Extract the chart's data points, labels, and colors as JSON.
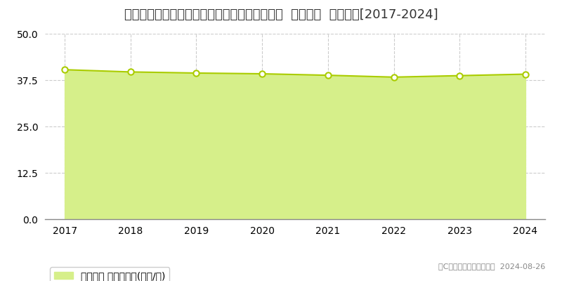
{
  "title": "神奈川県足柄上郡開成町みなみ３丁目３番１０  地価公示  地価推移[2017-2024]",
  "years": [
    2017,
    2018,
    2019,
    2020,
    2021,
    2022,
    2023,
    2024
  ],
  "values": [
    40.3,
    39.7,
    39.4,
    39.2,
    38.8,
    38.3,
    38.7,
    39.1
  ],
  "line_color": "#aacc00",
  "fill_color": "#d6ef8a",
  "marker_color": "#ffffff",
  "marker_edge_color": "#aacc00",
  "background_color": "#ffffff",
  "grid_color": "#cccccc",
  "ylim": [
    0,
    50
  ],
  "yticks": [
    0,
    12.5,
    25,
    37.5,
    50
  ],
  "legend_label": "地価公示 平均坪単価(万円/坪)",
  "copyright_text": "（C）土地価格ドットコム  2024-08-26",
  "title_fontsize": 13,
  "tick_fontsize": 10,
  "legend_fontsize": 10
}
